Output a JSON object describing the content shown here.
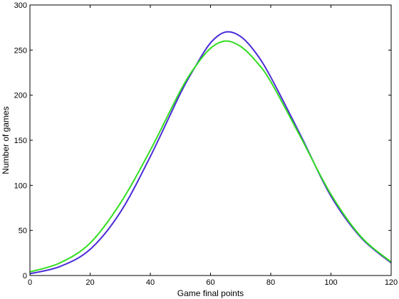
{
  "chart_data": {
    "type": "line",
    "title": "",
    "xlabel": "Game final points",
    "ylabel": "Number of games",
    "xlim": [
      0,
      120
    ],
    "ylim": [
      0,
      300
    ],
    "xticks": [
      0,
      20,
      40,
      60,
      80,
      100,
      120
    ],
    "yticks": [
      0,
      50,
      100,
      150,
      200,
      250,
      300
    ],
    "grid": false,
    "legend": "none",
    "series": [
      {
        "color": "#4b2bd8",
        "x": [
          0,
          10,
          20,
          30,
          40,
          50,
          55,
          60,
          65,
          70,
          75,
          80,
          90,
          100,
          110,
          120
        ],
        "y": [
          2,
          10,
          29,
          70,
          132,
          202,
          232,
          258,
          270,
          265,
          247,
          220,
          155,
          88,
          42,
          14
        ]
      },
      {
        "color": "#33dd22",
        "x": [
          0,
          10,
          20,
          30,
          40,
          50,
          55,
          60,
          65,
          70,
          75,
          80,
          90,
          100,
          110,
          120
        ],
        "y": [
          4,
          14,
          36,
          80,
          139,
          205,
          232,
          252,
          260,
          254,
          238,
          215,
          153,
          90,
          43,
          15
        ]
      }
    ]
  }
}
